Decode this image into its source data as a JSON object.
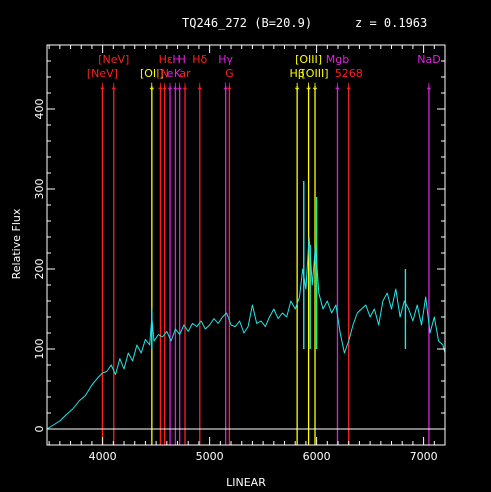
{
  "header": {
    "object": "TQ246_272 (B=20.9)",
    "redshift": "z = 0.1963"
  },
  "chart_data": {
    "type": "line",
    "xlabel": "LINEAR",
    "ylabel": "Relative Flux",
    "xlim": [
      3480,
      7200
    ],
    "ylim": [
      -20,
      480
    ],
    "x_ticks": [
      4000,
      5000,
      6000,
      7000
    ],
    "y_ticks": [
      0,
      100,
      200,
      300,
      400
    ],
    "zero_line": 0,
    "colors": {
      "background": "#000000",
      "spectrum": "#22e6e6",
      "axis": "#ffffff",
      "red": "#ff2020",
      "yellow": "#ffff00",
      "magenta": "#e020e0",
      "white": "#ffffff",
      "green": "#22ee88"
    },
    "series": [
      {
        "color": "spectrum",
        "x": [
          3480,
          3540,
          3600,
          3660,
          3720,
          3780,
          3840,
          3900,
          3960,
          4000,
          4040,
          4080,
          4120,
          4160,
          4200,
          4240,
          4280,
          4320,
          4360,
          4400,
          4440,
          4460,
          4480,
          4520,
          4560,
          4600,
          4640,
          4680,
          4720,
          4760,
          4800,
          4840,
          4880,
          4920,
          4960,
          5000,
          5040,
          5080,
          5120,
          5160,
          5200,
          5240,
          5280,
          5320,
          5360,
          5400,
          5440,
          5480,
          5520,
          5560,
          5600,
          5640,
          5680,
          5720,
          5760,
          5800,
          5840,
          5870,
          5900,
          5930,
          5960,
          5990,
          6020,
          6060,
          6100,
          6140,
          6180,
          6220,
          6260,
          6300,
          6340,
          6380,
          6420,
          6460,
          6500,
          6540,
          6580,
          6620,
          6660,
          6700,
          6740,
          6780,
          6820,
          6860,
          6900,
          6940,
          6980,
          7020,
          7060,
          7100,
          7140,
          7180,
          7200
        ],
        "y": [
          0,
          5,
          10,
          18,
          25,
          35,
          42,
          55,
          65,
          70,
          72,
          80,
          68,
          88,
          75,
          95,
          85,
          105,
          95,
          112,
          105,
          140,
          110,
          118,
          115,
          122,
          110,
          125,
          118,
          130,
          122,
          132,
          128,
          135,
          125,
          130,
          138,
          132,
          140,
          145,
          130,
          128,
          135,
          120,
          128,
          155,
          132,
          135,
          128,
          140,
          150,
          138,
          145,
          140,
          160,
          150,
          165,
          200,
          175,
          240,
          180,
          230,
          170,
          150,
          160,
          145,
          155,
          120,
          95,
          110,
          130,
          145,
          150,
          155,
          140,
          150,
          130,
          160,
          170,
          150,
          175,
          140,
          160,
          150,
          135,
          155,
          130,
          165,
          120,
          140,
          110,
          105,
          95
        ]
      }
    ],
    "emission_spikes": [
      {
        "x": 4460,
        "y": 150,
        "color": "spectrum"
      },
      {
        "x": 5880,
        "y": 310,
        "color": "spectrum"
      },
      {
        "x": 5940,
        "y": 230,
        "color": "spectrum"
      },
      {
        "x": 6000,
        "y": 290,
        "color": "green"
      },
      {
        "x": 6830,
        "y": 200,
        "color": "spectrum"
      }
    ],
    "lines": [
      {
        "x": 3998,
        "color": "red",
        "label": "[NeV]",
        "row": 2
      },
      {
        "x": 4104,
        "color": "red",
        "label": "[NeV]",
        "row": 1
      },
      {
        "x": 4460,
        "color": "yellow",
        "label": "[OII]",
        "row": 2
      },
      {
        "x": 4540,
        "color": "red",
        "label": "",
        "row": 2
      },
      {
        "x": 4580,
        "color": "red",
        "label": "",
        "row": 2
      },
      {
        "x": 4630,
        "color": "magenta",
        "label": "",
        "row": 2
      },
      {
        "x": 4680,
        "color": "magenta",
        "label": "",
        "row": 2
      },
      {
        "x": 4720,
        "color": "magenta",
        "label": "",
        "row": 2
      },
      {
        "x": 4770,
        "color": "red",
        "label": "",
        "row": 2
      },
      {
        "x": 4908,
        "color": "red",
        "label": "Hδ",
        "row": 1
      },
      {
        "x": 5150,
        "color": "magenta",
        "label": "Hγ",
        "row": 1
      },
      {
        "x": 5185,
        "color": "red",
        "label": "G",
        "row": 2
      },
      {
        "x": 5818,
        "color": "yellow",
        "label": "Hβ",
        "row": 2
      },
      {
        "x": 5925,
        "color": "yellow",
        "label": "[OIII]",
        "row": 1
      },
      {
        "x": 5985,
        "color": "yellow",
        "label": "[OIII]",
        "row": 2
      },
      {
        "x": 6195,
        "color": "magenta",
        "label": "Mgb",
        "row": 1
      },
      {
        "x": 6300,
        "color": "red",
        "label": "5268",
        "row": 2
      },
      {
        "x": 7050,
        "color": "magenta",
        "label": "NaD",
        "row": 1
      }
    ],
    "crowded_labels": [
      {
        "x": 4590,
        "color": "red",
        "text": "Hε",
        "row": 1
      },
      {
        "x": 4690,
        "color": "magenta",
        "text": "H",
        "row": 1
      },
      {
        "x": 4740,
        "color": "magenta",
        "text": "H",
        "row": 1
      },
      {
        "x": 4560,
        "color": "red",
        "text": "[N",
        "row": 2
      },
      {
        "x": 4630,
        "color": "magenta",
        "text": "e",
        "row": 2
      },
      {
        "x": 4700,
        "color": "magenta",
        "text": "K",
        "row": 2
      },
      {
        "x": 4770,
        "color": "red",
        "text": "ar",
        "row": 2
      }
    ]
  }
}
